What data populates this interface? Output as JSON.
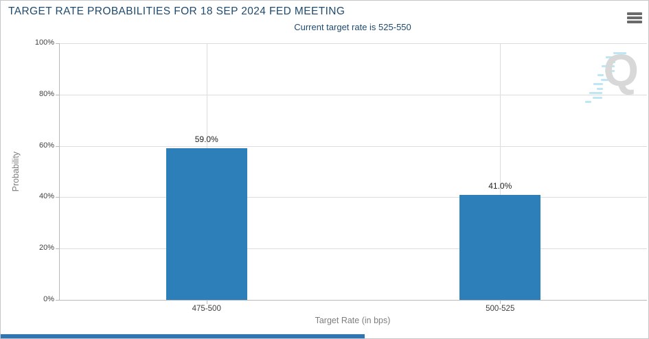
{
  "header": {
    "title": "TARGET RATE PROBABILITIES FOR 18 SEP 2024 FED MEETING",
    "menu_icon": "hamburger-icon"
  },
  "subtitle": "Current target rate is 525-550",
  "watermark": {
    "letter": "Q"
  },
  "colors": {
    "bar": "#2C7FB8",
    "title_text": "#1D4A6E",
    "subtitle_text": "#1D4A6E",
    "axis_text": "#3F3F3F",
    "value_label_text": "#222222",
    "axis_title_text": "#7D7D7D",
    "grid_line": "#DCDCDC",
    "axis_line": "#B9B9B9",
    "menu_icon": "#6A6A6A",
    "watermark_letter": "#D8D8D8",
    "watermark_streak": "#BEE6F4",
    "bottom_panel": "#2E75B6",
    "border": "#C6C6C6"
  },
  "chart_data": {
    "type": "bar",
    "title": "TARGET RATE PROBABILITIES FOR 18 SEP 2024 FED MEETING",
    "subtitle": "Current target rate is 525-550",
    "categories": [
      "475-500",
      "500-525"
    ],
    "values": [
      59.0,
      41.0
    ],
    "value_labels": [
      "59.0%",
      "41.0%"
    ],
    "xlabel": "Target Rate (in bps)",
    "ylabel": "Probability",
    "ylim": [
      0,
      100
    ],
    "ytick_step": 20,
    "ytick_labels": [
      "0%",
      "20%",
      "40%",
      "60%",
      "80%",
      "100%"
    ],
    "grid": true,
    "legend": false
  }
}
